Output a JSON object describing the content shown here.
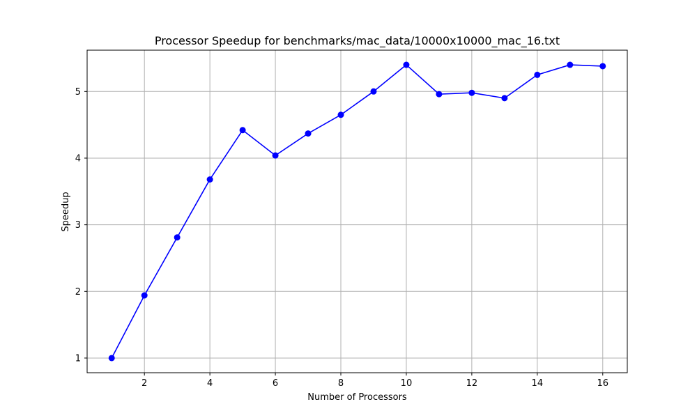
{
  "chart_data": {
    "type": "line",
    "title": "Processor Speedup for benchmarks/mac_data/10000x10000_mac_16.txt",
    "xlabel": "Number of Processors",
    "ylabel": "Speedup",
    "xlim": [
      0.25,
      16.75
    ],
    "ylim": [
      0.78,
      5.62
    ],
    "xticks": [
      2,
      4,
      6,
      8,
      10,
      12,
      14,
      16
    ],
    "yticks": [
      1,
      2,
      3,
      4,
      5
    ],
    "grid": true,
    "legend": null,
    "series": [
      {
        "color": "#0000ff",
        "marker": "circle",
        "x": [
          1,
          2,
          3,
          4,
          5,
          6,
          7,
          8,
          9,
          10,
          11,
          12,
          13,
          14,
          15,
          16
        ],
        "y": [
          1.0,
          1.94,
          2.81,
          3.68,
          4.42,
          4.04,
          4.37,
          4.65,
          5.0,
          5.4,
          4.96,
          4.98,
          4.9,
          5.25,
          5.4,
          5.38
        ]
      }
    ]
  }
}
